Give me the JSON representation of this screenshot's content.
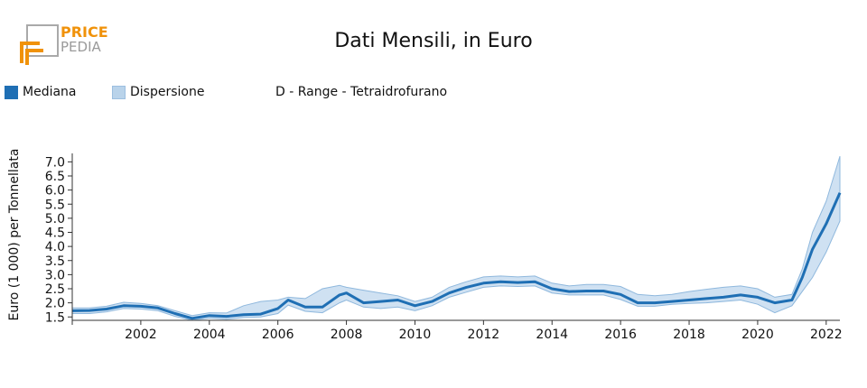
{
  "header": {
    "logo_line1": "PRICE",
    "logo_line2": "PEDIA",
    "title": "Dati Mensili, in Euro"
  },
  "legend": {
    "median_label": "Mediana",
    "dispersion_label": "Dispersione",
    "series_subtitle": "D - Range - Tetraidrofurano"
  },
  "colors": {
    "median": "#1f6fb4",
    "band_fill": "#cfe1f2",
    "band_stroke": "#8fb8dd",
    "logo_orange": "#f0920a",
    "logo_gray": "#9a9a9a"
  },
  "chart_data": {
    "type": "area",
    "ylabel": "Euro (1 000) per Tonnellata",
    "xlabel": "",
    "xlim": [
      2000.0,
      2022.4
    ],
    "ylim": [
      1.38,
      7.3
    ],
    "y_ticks": [
      "1.5",
      "2.0",
      "2.5",
      "3.0",
      "3.5",
      "4.0",
      "4.5",
      "5.0",
      "5.5",
      "6.0",
      "6.5",
      "7.0"
    ],
    "x_ticks": [
      "2002",
      "2004",
      "2006",
      "2008",
      "2010",
      "2012",
      "2014",
      "2016",
      "2018",
      "2020",
      "2022"
    ],
    "legend_position": "top-left",
    "series": [
      {
        "name": "Mediana",
        "x": [
          2000.0,
          2000.5,
          2001.0,
          2001.5,
          2002.0,
          2002.5,
          2003.0,
          2003.5,
          2004.0,
          2004.5,
          2005.0,
          2005.5,
          2006.0,
          2006.3,
          2006.8,
          2007.3,
          2007.8,
          2008.0,
          2008.5,
          2009.0,
          2009.5,
          2010.0,
          2010.5,
          2011.0,
          2011.5,
          2012.0,
          2012.5,
          2013.0,
          2013.5,
          2014.0,
          2014.5,
          2015.0,
          2015.5,
          2016.0,
          2016.5,
          2017.0,
          2017.5,
          2018.0,
          2018.5,
          2019.0,
          2019.5,
          2020.0,
          2020.5,
          2021.0,
          2021.3,
          2021.6,
          2022.0,
          2022.4
        ],
        "values": [
          1.72,
          1.73,
          1.78,
          1.9,
          1.88,
          1.82,
          1.62,
          1.45,
          1.55,
          1.52,
          1.58,
          1.6,
          1.8,
          2.1,
          1.85,
          1.85,
          2.28,
          2.35,
          2.0,
          2.05,
          2.1,
          1.9,
          2.05,
          2.35,
          2.55,
          2.7,
          2.75,
          2.72,
          2.75,
          2.5,
          2.4,
          2.42,
          2.42,
          2.3,
          2.0,
          2.0,
          2.05,
          2.1,
          2.15,
          2.2,
          2.28,
          2.2,
          2.0,
          2.1,
          2.9,
          3.9,
          4.8,
          5.9
        ]
      },
      {
        "name": "Dispersione",
        "x": [
          2000.0,
          2000.5,
          2001.0,
          2001.5,
          2002.0,
          2002.5,
          2003.0,
          2003.5,
          2004.0,
          2004.5,
          2005.0,
          2005.5,
          2006.0,
          2006.3,
          2006.8,
          2007.3,
          2007.8,
          2008.0,
          2008.5,
          2009.0,
          2009.5,
          2010.0,
          2010.5,
          2011.0,
          2011.5,
          2012.0,
          2012.5,
          2013.0,
          2013.5,
          2014.0,
          2014.5,
          2015.0,
          2015.5,
          2016.0,
          2016.5,
          2017.0,
          2017.5,
          2018.0,
          2018.5,
          2019.0,
          2019.5,
          2020.0,
          2020.5,
          2021.0,
          2021.3,
          2021.6,
          2022.0,
          2022.4
        ],
        "upper": [
          1.82,
          1.82,
          1.88,
          2.02,
          1.98,
          1.9,
          1.72,
          1.55,
          1.65,
          1.64,
          1.9,
          2.05,
          2.1,
          2.2,
          2.15,
          2.5,
          2.62,
          2.55,
          2.45,
          2.35,
          2.25,
          2.05,
          2.2,
          2.55,
          2.75,
          2.92,
          2.95,
          2.92,
          2.95,
          2.7,
          2.6,
          2.65,
          2.65,
          2.58,
          2.3,
          2.25,
          2.3,
          2.4,
          2.48,
          2.55,
          2.6,
          2.5,
          2.2,
          2.3,
          3.2,
          4.5,
          5.6,
          7.2
        ],
        "lower": [
          1.62,
          1.62,
          1.68,
          1.8,
          1.78,
          1.72,
          1.52,
          1.38,
          1.46,
          1.42,
          1.48,
          1.5,
          1.62,
          1.92,
          1.7,
          1.65,
          2.0,
          2.1,
          1.85,
          1.8,
          1.85,
          1.72,
          1.9,
          2.2,
          2.38,
          2.55,
          2.6,
          2.58,
          2.6,
          2.35,
          2.28,
          2.28,
          2.28,
          2.12,
          1.88,
          1.88,
          1.95,
          1.98,
          2.0,
          2.05,
          2.1,
          1.95,
          1.65,
          1.9,
          2.4,
          2.9,
          3.8,
          4.9
        ]
      }
    ]
  }
}
